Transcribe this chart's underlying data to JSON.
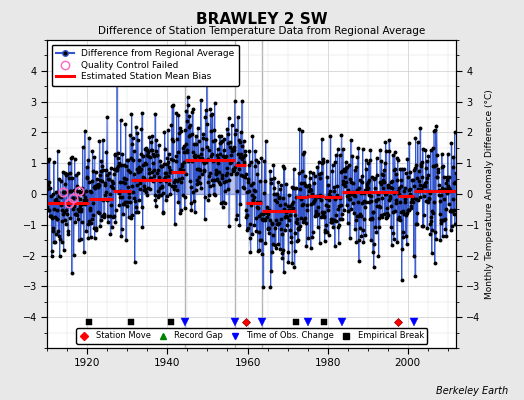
{
  "title": "BRAWLEY 2 SW",
  "subtitle": "Difference of Station Temperature Data from Regional Average",
  "ylabel_right": "Monthly Temperature Anomaly Difference (°C)",
  "credit": "Berkeley Earth",
  "ylim": [
    -5,
    5
  ],
  "xlim": [
    1910,
    2012
  ],
  "xticks": [
    1920,
    1940,
    1960,
    1980,
    2000
  ],
  "yticks": [
    -4,
    -3,
    -2,
    -1,
    0,
    1,
    2,
    3,
    4
  ],
  "bg_color": "#e8e8e8",
  "plot_bg_color": "#ffffff",
  "seed": 42,
  "segments": [
    {
      "start": 1910.0,
      "end": 1920.5,
      "bias": -0.3
    },
    {
      "start": 1920.5,
      "end": 1926.5,
      "bias": -0.15
    },
    {
      "start": 1926.5,
      "end": 1931.0,
      "bias": 0.1
    },
    {
      "start": 1931.0,
      "end": 1941.0,
      "bias": 0.45
    },
    {
      "start": 1941.0,
      "end": 1944.5,
      "bias": 0.7
    },
    {
      "start": 1944.5,
      "end": 1957.0,
      "bias": 1.1
    },
    {
      "start": 1957.0,
      "end": 1959.5,
      "bias": 0.95
    },
    {
      "start": 1959.5,
      "end": 1963.5,
      "bias": -0.3
    },
    {
      "start": 1963.5,
      "end": 1972.0,
      "bias": -0.55
    },
    {
      "start": 1972.0,
      "end": 1975.0,
      "bias": -0.1
    },
    {
      "start": 1975.0,
      "end": 1979.0,
      "bias": -0.05
    },
    {
      "start": 1979.0,
      "end": 1983.5,
      "bias": -0.1
    },
    {
      "start": 1983.5,
      "end": 1997.5,
      "bias": 0.05
    },
    {
      "start": 1997.5,
      "end": 2001.5,
      "bias": -0.05
    },
    {
      "start": 2001.5,
      "end": 2012.0,
      "bias": 0.1
    }
  ],
  "station_moves": [
    1959.5,
    1997.5
  ],
  "obs_changes": [
    1944.5,
    1957.0,
    1963.5,
    1975.0,
    1983.5,
    2001.5
  ],
  "empirical_breaks": [
    1920.5,
    1931.0,
    1941.0,
    1972.0,
    1979.0
  ],
  "record_gaps": [],
  "qc_fail_years": [
    1914.0,
    1915.5,
    1916.5,
    1918.0
  ],
  "tall_vert_lines": [
    1944.5,
    1957.0,
    1963.5
  ],
  "noise_std": 0.9,
  "line_color": "#3355cc",
  "dot_color": "#000000",
  "bias_color": "#ff0000",
  "qc_color": "#ff99cc",
  "marker_y": -4.15,
  "figsize": [
    5.24,
    4.0
  ],
  "dpi": 100
}
